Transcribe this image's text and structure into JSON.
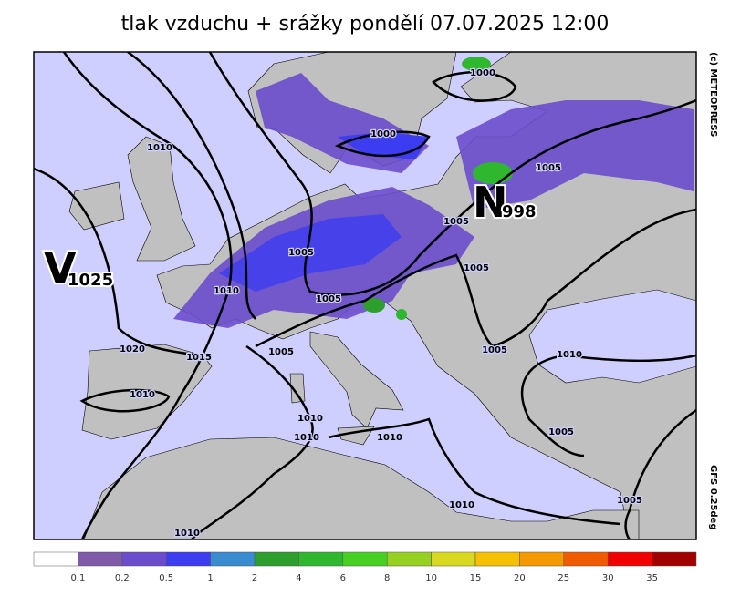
{
  "title": "tlak vzduchu + srážky pondělí 07.07.2025 12:00",
  "copyright": "(c) METEOPRESS",
  "model": "GFS 0.25deg",
  "centers": [
    {
      "letter": "V",
      "pressure": "1025"
    },
    {
      "letter": "N",
      "pressure": "998"
    }
  ],
  "isobar_labels": [
    "1000",
    "1000",
    "1010",
    "1005",
    "1005",
    "1005",
    "1005",
    "1010",
    "1005",
    "1005",
    "1010",
    "1020",
    "1015",
    "1005",
    "1010",
    "1010",
    "1010",
    "1010",
    "1005",
    "1005",
    "1010",
    "1010"
  ],
  "legend": {
    "labels": [
      "0.1",
      "0.2",
      "0.5",
      "1",
      "2",
      "4",
      "6",
      "8",
      "10",
      "15",
      "20",
      "25",
      "30",
      "35"
    ],
    "colors": [
      "#ffffff",
      "#7e5aa8",
      "#6a4ccc",
      "#3c3cf0",
      "#3a8cd0",
      "#2e9e2e",
      "#2fb82f",
      "#46d024",
      "#96d020",
      "#d8d820",
      "#f4c000",
      "#f49a00",
      "#f05a00",
      "#f00000",
      "#a00000"
    ]
  }
}
